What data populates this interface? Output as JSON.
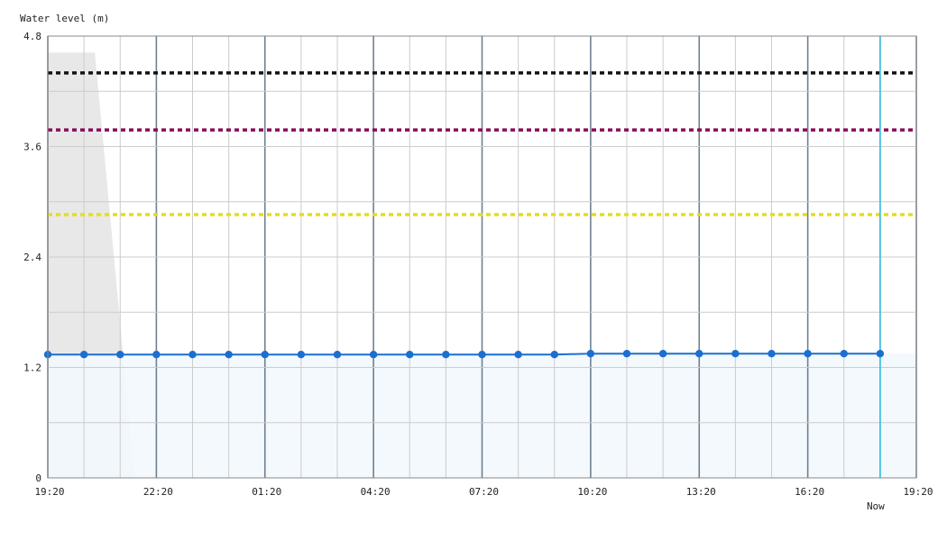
{
  "chart_data": {
    "type": "line",
    "ylabel": "Water level (m)",
    "ylim": [
      0,
      4.8
    ],
    "yticks": [
      {
        "value": 0,
        "label": "0"
      },
      {
        "value": 1.2,
        "label": "1.2"
      },
      {
        "value": 2.4,
        "label": "2.4"
      },
      {
        "value": 3.6,
        "label": "3.6"
      },
      {
        "value": 4.8,
        "label": "4.8"
      }
    ],
    "xlim": [
      0,
      24
    ],
    "xticks": [
      {
        "value": 0,
        "label": "19:20"
      },
      {
        "value": 3,
        "label": "22:20"
      },
      {
        "value": 6,
        "label": "01:20"
      },
      {
        "value": 9,
        "label": "04:20"
      },
      {
        "value": 12,
        "label": "07:20"
      },
      {
        "value": 15,
        "label": "10:20"
      },
      {
        "value": 18,
        "label": "13:20"
      },
      {
        "value": 21,
        "label": "16:20"
      },
      {
        "value": 24,
        "label": "19:20"
      }
    ],
    "now": {
      "x": 23,
      "label": "Now"
    },
    "grid": true,
    "series": [
      {
        "color": "#1a6fd0",
        "x": [
          0,
          1,
          2,
          3,
          4,
          5,
          6,
          7,
          8,
          9,
          10,
          11,
          12,
          13,
          14,
          15,
          16,
          17,
          18,
          19,
          20,
          21,
          22,
          23
        ],
        "values": [
          1.34,
          1.34,
          1.34,
          1.34,
          1.34,
          1.34,
          1.34,
          1.34,
          1.34,
          1.34,
          1.34,
          1.34,
          1.34,
          1.34,
          1.34,
          1.35,
          1.35,
          1.35,
          1.35,
          1.35,
          1.35,
          1.35,
          1.35,
          1.35
        ]
      }
    ],
    "thresholds": [
      {
        "value": 4.4,
        "color": "#111111"
      },
      {
        "value": 3.78,
        "color": "#8b0a5a"
      },
      {
        "value": 2.86,
        "color": "#e6dc1e"
      }
    ],
    "shaded_area": {
      "color": "#e8e8e8",
      "x": [
        0,
        1.3,
        2.4
      ],
      "values": [
        4.62,
        4.62,
        0
      ]
    },
    "colors": {
      "background": "#ffffff",
      "grid_minor": "#cccccc",
      "grid_major": "#708090",
      "now_line": "#40c0e0",
      "fill_under": "#f3f8fe"
    }
  }
}
